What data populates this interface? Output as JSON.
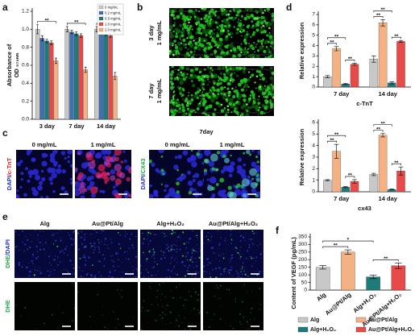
{
  "panel_labels": [
    "a",
    "b",
    "c",
    "d",
    "e",
    "f"
  ],
  "chart_data": [
    {
      "type": "bar",
      "ylabel": [
        "Absorbance of",
        "OD ₅₇₀ₙₘ"
      ],
      "categories": [
        "3 day",
        "7 day",
        "14 day"
      ],
      "series": [
        {
          "name": "0 mg/mL",
          "color": "#c8c8c8",
          "values": [
            1.0,
            1.0,
            1.0
          ],
          "errors": [
            0.05,
            0.03,
            0.03
          ]
        },
        {
          "name": "0.2 mg/mL",
          "color": "#3f6fb5",
          "values": [
            0.9,
            0.97,
            0.97
          ],
          "errors": [
            0.03,
            0.02,
            0.03
          ]
        },
        {
          "name": "0.5 mg/mL",
          "color": "#1f7a7a",
          "values": [
            0.87,
            0.95,
            0.95
          ],
          "errors": [
            0.02,
            0.02,
            0.02
          ]
        },
        {
          "name": "1.0 mg/mL",
          "color": "#e84a4a",
          "values": [
            0.85,
            0.93,
            0.93
          ],
          "errors": [
            0.02,
            0.02,
            0.02
          ]
        },
        {
          "name": "2.0 mg/mL",
          "color": "#f4b183",
          "values": [
            0.65,
            0.55,
            0.48
          ],
          "errors": [
            0.03,
            0.03,
            0.04
          ]
        }
      ],
      "ylim": [
        0,
        1.2
      ],
      "yticks": [
        {
          "value": 0,
          "label": "0.0"
        },
        0.2,
        0.4,
        0.6,
        0.8,
        {
          "value": 1,
          "label": "1.0"
        },
        1.2
      ],
      "annotations": [
        "**",
        "**",
        "**"
      ]
    },
    {
      "type": "bar",
      "ylabel": "Relative expression",
      "xlabel": "c-TnT",
      "categories": [
        "7 day",
        "14 day"
      ],
      "series": [
        {
          "color": "#c8c8c8",
          "values": [
            1.0,
            2.7
          ],
          "errors": [
            0.1,
            0.3
          ]
        },
        {
          "color": "#f4b183",
          "values": [
            3.7,
            6.2
          ],
          "errors": [
            0.2,
            0.3
          ]
        },
        {
          "color": "#1f7a7a",
          "values": [
            0.3,
            0.4
          ],
          "errors": [
            0.05,
            0.1
          ]
        },
        {
          "color": "#e84a4a",
          "values": [
            2.2,
            4.4
          ],
          "errors": [
            0.1,
            0.1
          ]
        }
      ],
      "ylim": [
        0,
        7
      ],
      "yticks": [
        0,
        1,
        2,
        3,
        4,
        5,
        6,
        7
      ],
      "annotations": [
        "**",
        "**",
        "**",
        "**",
        "**",
        "**"
      ]
    },
    {
      "type": "bar",
      "ylabel": "Relative expression",
      "xlabel": "cx43",
      "categories": [
        "7 day",
        "14 day"
      ],
      "series": [
        {
          "color": "#c8c8c8",
          "values": [
            1.0,
            1.5
          ],
          "errors": [
            0.05,
            0.1
          ]
        },
        {
          "color": "#f4b183",
          "values": [
            3.5,
            4.9
          ],
          "errors": [
            0.6,
            0.15
          ]
        },
        {
          "color": "#1f7a7a",
          "values": [
            0.4,
            0.2
          ],
          "errors": [
            0.05,
            0.03
          ]
        },
        {
          "color": "#e84a4a",
          "values": [
            0.9,
            1.8
          ],
          "errors": [
            0.15,
            0.35
          ]
        }
      ],
      "ylim": [
        0,
        6
      ],
      "yticks": [
        0,
        1,
        2,
        3,
        4,
        5,
        6
      ],
      "annotations": [
        "**",
        "**",
        "**",
        "**",
        "**",
        "**"
      ]
    },
    {
      "type": "bar",
      "ylabel": "Content of VEGF (pg/mL)",
      "categories": [
        "Alg",
        "Au@Pt/Alg",
        "Alg+H₂O₂",
        "Au@Pt/Alg+H₂O₂"
      ],
      "values": [
        150,
        250,
        87,
        160
      ],
      "errors": [
        12,
        15,
        12,
        18
      ],
      "colors": [
        "#c8c8c8",
        "#f4b183",
        "#1f7a7a",
        "#e84a4a"
      ],
      "ylim": [
        0,
        350
      ],
      "yticks": [
        0,
        50,
        100,
        150,
        200,
        250,
        300,
        350
      ],
      "annotations": [
        "**",
        "*",
        "**"
      ]
    }
  ],
  "panel_b": {
    "labels": [
      [
        "3 day",
        "1 mg/mL"
      ],
      [
        "7 day",
        "1 mg/mL"
      ]
    ]
  },
  "panel_c": {
    "title": "7day",
    "column_labels": [
      "0 mg/mL",
      "1 mg/mL",
      "0 mg/mL",
      "1 mg/mL"
    ],
    "row_labels": [
      [
        "DAPI",
        "/c-TnT"
      ],
      [
        "DAPI",
        "/CX43"
      ]
    ]
  },
  "panel_e": {
    "column_labels": [
      "Alg",
      "Au@Pt/Alg",
      "Alg+H₂O₂",
      "Au@Pt/Alg+H₂O₂"
    ],
    "row_labels": [
      [
        "DHE",
        "/DAPI"
      ],
      [
        "DHE"
      ]
    ]
  }
}
